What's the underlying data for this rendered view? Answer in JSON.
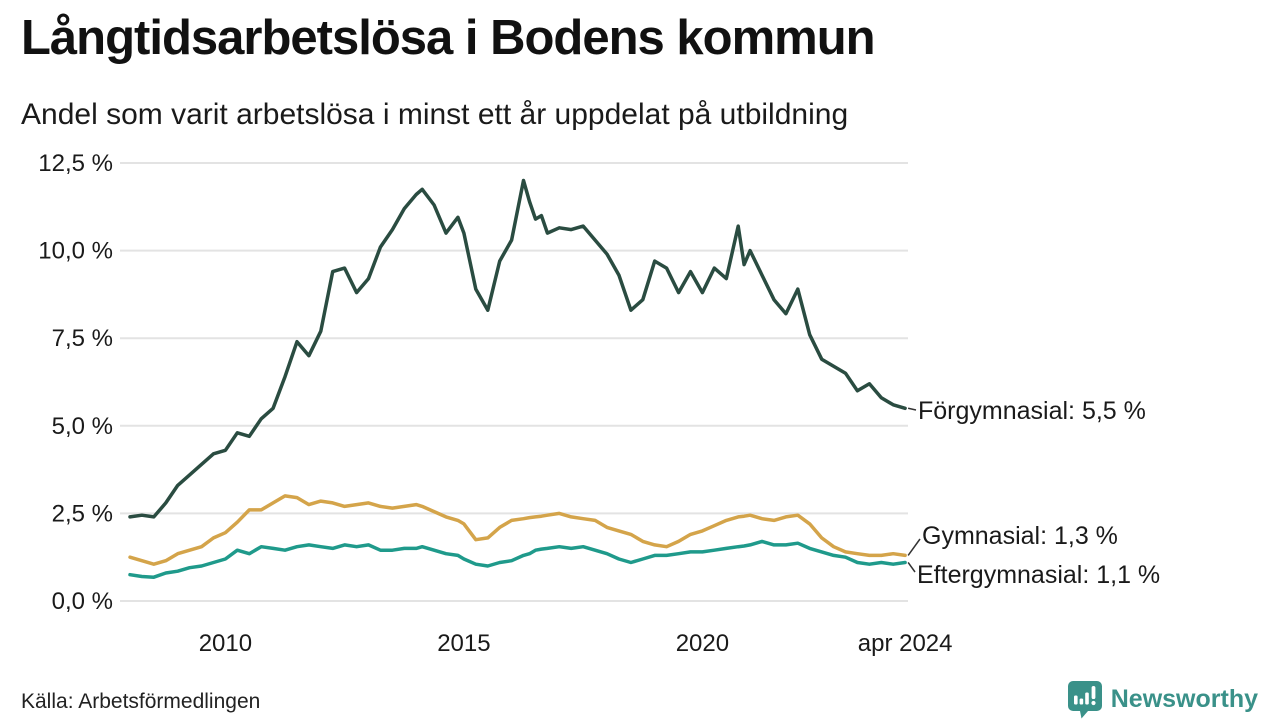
{
  "header": {
    "title": "Långtidsarbetslösa i Bodens kommun",
    "subtitle": "Andel som varit arbetslösa i minst ett år uppdelat på utbildning"
  },
  "footer": {
    "source": "Källa: Arbetsförmedlingen",
    "brand_name": "Newsworthy"
  },
  "colors": {
    "foergymnasial": "#2a4c41",
    "gymnasial": "#d4a44a",
    "eftergymnasial": "#1f9a8b",
    "grid": "#e3e3e3",
    "text": "#1a1a1a",
    "connector": "#333333",
    "brand_teal": "#3a9189"
  },
  "chart_data": {
    "type": "line",
    "title": "Långtidsarbetslösa i Bodens kommun",
    "subtitle": "Andel som varit arbetslösa i minst ett år uppdelat på utbildning",
    "unit": "%",
    "grid": "horizontal-only",
    "legend_position": "right-edge-annotations",
    "ylim": [
      0,
      12.5
    ],
    "xlim": [
      2008.0,
      2024.25
    ],
    "y_ticks": [
      {
        "label": "12,5 %",
        "value": 12.5
      },
      {
        "label": "10,0 %",
        "value": 10.0
      },
      {
        "label": "7,5 %",
        "value": 7.5
      },
      {
        "label": "5,0 %",
        "value": 5.0
      },
      {
        "label": "2,5 %",
        "value": 2.5
      },
      {
        "label": "0,0 %",
        "value": 0.0
      }
    ],
    "x_ticks": [
      {
        "label": "2010",
        "value": 2010
      },
      {
        "label": "2015",
        "value": 2015
      },
      {
        "label": "2020",
        "value": 2020
      },
      {
        "label": "apr 2024",
        "value": 2024.25
      }
    ],
    "x": [
      2008.0,
      2008.25,
      2008.5,
      2008.75,
      2009.0,
      2009.25,
      2009.5,
      2009.75,
      2010.0,
      2010.25,
      2010.5,
      2010.75,
      2011.0,
      2011.25,
      2011.5,
      2011.75,
      2012.0,
      2012.25,
      2012.5,
      2012.75,
      2013.0,
      2013.25,
      2013.5,
      2013.75,
      2014.0,
      2014.125,
      2014.375,
      2014.625,
      2014.875,
      2015.0,
      2015.25,
      2015.5,
      2015.75,
      2016.0,
      2016.25,
      2016.375,
      2016.5,
      2016.625,
      2016.75,
      2017.0,
      2017.25,
      2017.5,
      2017.75,
      2018.0,
      2018.25,
      2018.5,
      2018.75,
      2019.0,
      2019.25,
      2019.5,
      2019.75,
      2020.0,
      2020.25,
      2020.5,
      2020.75,
      2020.875,
      2021.0,
      2021.25,
      2021.5,
      2021.75,
      2022.0,
      2022.25,
      2022.5,
      2022.75,
      2023.0,
      2023.25,
      2023.5,
      2023.75,
      2024.0,
      2024.25
    ],
    "series": [
      {
        "name": "Förgymnasial",
        "end_label": "Förgymnasial: 5,5 %",
        "end_value_text": "5,5 %",
        "color": "#2a4c41",
        "values": [
          2.4,
          2.45,
          2.4,
          2.8,
          3.3,
          3.6,
          3.9,
          4.2,
          4.3,
          4.8,
          4.7,
          5.2,
          5.5,
          6.4,
          7.4,
          7.0,
          7.7,
          9.4,
          9.5,
          8.8,
          9.2,
          10.1,
          10.6,
          11.2,
          11.6,
          11.75,
          11.3,
          10.5,
          10.95,
          10.5,
          8.9,
          8.3,
          9.7,
          10.3,
          12.0,
          11.4,
          10.9,
          11.0,
          10.5,
          10.65,
          10.6,
          10.7,
          10.3,
          9.9,
          9.3,
          8.3,
          8.6,
          9.7,
          9.5,
          8.8,
          9.4,
          8.8,
          9.5,
          9.2,
          10.7,
          9.6,
          10.0,
          9.3,
          8.6,
          8.2,
          8.9,
          7.6,
          6.9,
          6.7,
          6.5,
          6.0,
          6.2,
          5.8,
          5.6,
          5.5
        ]
      },
      {
        "name": "Gymnasial",
        "end_label": "Gymnasial: 1,3 %",
        "end_value_text": "1,3 %",
        "color": "#d4a44a",
        "values": [
          1.25,
          1.15,
          1.05,
          1.15,
          1.35,
          1.45,
          1.55,
          1.8,
          1.95,
          2.25,
          2.6,
          2.6,
          2.8,
          3.0,
          2.95,
          2.75,
          2.85,
          2.8,
          2.7,
          2.75,
          2.8,
          2.7,
          2.65,
          2.7,
          2.75,
          2.7,
          2.55,
          2.4,
          2.3,
          2.2,
          1.75,
          1.8,
          2.1,
          2.3,
          2.35,
          2.38,
          2.4,
          2.42,
          2.45,
          2.5,
          2.4,
          2.35,
          2.3,
          2.1,
          2.0,
          1.9,
          1.7,
          1.6,
          1.55,
          1.7,
          1.9,
          2.0,
          2.15,
          2.3,
          2.4,
          2.42,
          2.45,
          2.35,
          2.3,
          2.4,
          2.45,
          2.2,
          1.8,
          1.55,
          1.4,
          1.35,
          1.3,
          1.3,
          1.35,
          1.3
        ]
      },
      {
        "name": "Eftergymnasial",
        "end_label": "Eftergymnasial: 1,1 %",
        "end_value_text": "1,1 %",
        "color": "#1f9a8b",
        "values": [
          0.75,
          0.7,
          0.68,
          0.8,
          0.85,
          0.95,
          1.0,
          1.1,
          1.2,
          1.45,
          1.35,
          1.55,
          1.5,
          1.45,
          1.55,
          1.6,
          1.55,
          1.5,
          1.6,
          1.55,
          1.6,
          1.45,
          1.45,
          1.5,
          1.5,
          1.55,
          1.45,
          1.35,
          1.3,
          1.2,
          1.05,
          1.0,
          1.1,
          1.15,
          1.3,
          1.35,
          1.45,
          1.48,
          1.5,
          1.55,
          1.5,
          1.55,
          1.45,
          1.35,
          1.2,
          1.1,
          1.2,
          1.3,
          1.3,
          1.35,
          1.4,
          1.4,
          1.45,
          1.5,
          1.55,
          1.57,
          1.6,
          1.7,
          1.6,
          1.6,
          1.65,
          1.5,
          1.4,
          1.3,
          1.25,
          1.1,
          1.05,
          1.1,
          1.05,
          1.1
        ]
      }
    ]
  }
}
